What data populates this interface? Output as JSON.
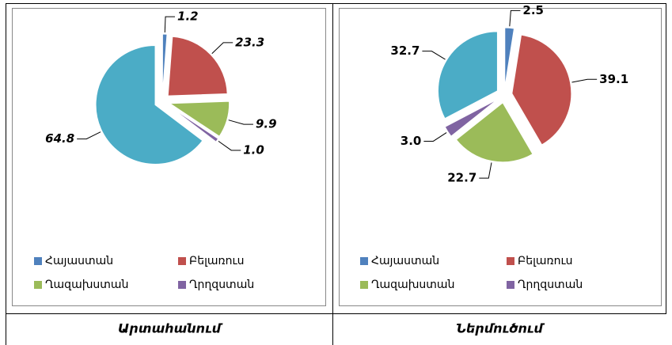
{
  "chart_data": [
    {
      "type": "pie",
      "caption": "Արտահանում",
      "categories": [
        "Հայաստան",
        "Բելառուս",
        "Ղազախստան",
        "Ղրղզստան",
        null
      ],
      "values": [
        1.2,
        23.3,
        9.9,
        1.0,
        64.8
      ],
      "value_labels": [
        "1.2",
        "23.3",
        "9.9",
        "1.0",
        "64.8"
      ],
      "colors": [
        "#4f81bd",
        "#c0504d",
        "#9bbb59",
        "#8064a2",
        "#4bacc6"
      ]
    },
    {
      "type": "pie",
      "caption": "Ներմուծում",
      "categories": [
        "Հայաստան",
        "Բելառուս",
        "Ղազախստան",
        "Ղրղզստան",
        null
      ],
      "values": [
        2.5,
        39.1,
        22.7,
        3.0,
        32.7
      ],
      "value_labels": [
        "2.5",
        "39.1",
        "22.7",
        "3.0",
        "32.7"
      ],
      "colors": [
        "#4f81bd",
        "#c0504d",
        "#9bbb59",
        "#8064a2",
        "#4bacc6"
      ]
    }
  ]
}
